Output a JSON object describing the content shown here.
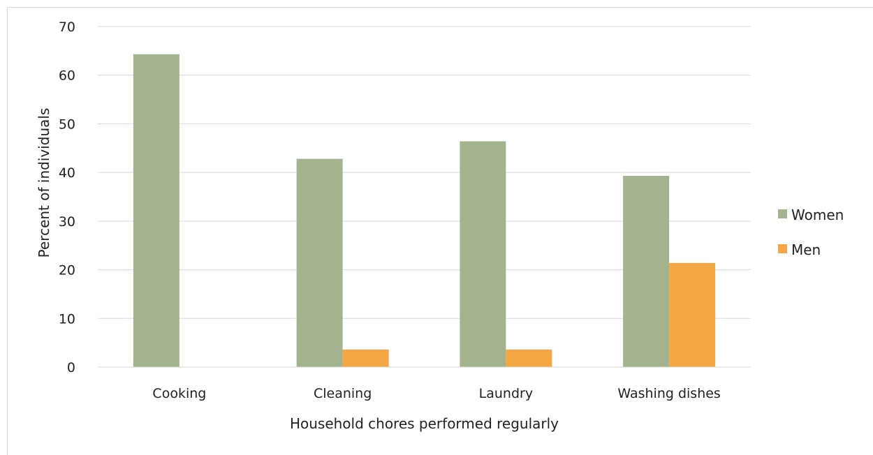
{
  "chart_data": {
    "type": "bar",
    "title": "",
    "xlabel": "Household chores performed  regularly",
    "ylabel": "Percent of individuals",
    "categories": [
      "Cooking",
      "Cleaning",
      "Laundry",
      "Washing dishes"
    ],
    "series": [
      {
        "name": "Women",
        "values": [
          64.3,
          42.8,
          46.4,
          39.3
        ],
        "color": "#a3b38f"
      },
      {
        "name": "Men",
        "values": [
          0,
          3.6,
          3.6,
          21.4
        ],
        "color": "#f4a544"
      }
    ],
    "ylim": [
      0,
      70
    ],
    "yticks": [
      "0",
      "10",
      "20",
      "30",
      "40",
      "50",
      "60",
      "70"
    ],
    "grid": true,
    "legend_position": "right"
  }
}
